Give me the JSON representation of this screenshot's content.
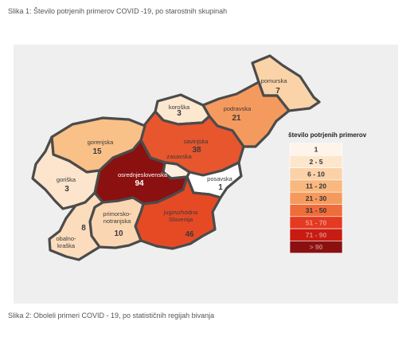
{
  "captions": {
    "top": "Slika 1: Število potrjenih primerov COVID -19, po starostnih skupinah",
    "bottom": "Slika 2: Oboleli primeri COVID - 19, po statističnih regijah bivanja"
  },
  "map": {
    "regions": [
      {
        "id": "pomurska",
        "lines": [
          "pomurska"
        ],
        "value": "7",
        "fill": "#fbd3a8"
      },
      {
        "id": "podravska",
        "lines": [
          "podravska"
        ],
        "value": "21",
        "fill": "#f59a5e"
      },
      {
        "id": "koroska",
        "lines": [
          "koroška"
        ],
        "value": "3",
        "fill": "#fce7cf"
      },
      {
        "id": "savinjska",
        "lines": [
          "savinjska"
        ],
        "value": "38",
        "fill": "#e8562e"
      },
      {
        "id": "zasavska",
        "lines": [
          "zasavska"
        ],
        "value": "",
        "fill": "#fdeedd"
      },
      {
        "id": "gorenjska",
        "lines": [
          "gorenjska"
        ],
        "value": "15",
        "fill": "#f9c088"
      },
      {
        "id": "osrednjeslovenska",
        "lines": [
          "osrednjeslovenska"
        ],
        "value": "94",
        "fill": "#8b1010"
      },
      {
        "id": "posavska",
        "lines": [
          "posavska"
        ],
        "value": "1",
        "fill": "#ffffff"
      },
      {
        "id": "goriska",
        "lines": [
          "goriška"
        ],
        "value": "3",
        "fill": "#fce5cc"
      },
      {
        "id": "jugovzhodna",
        "lines": [
          "jugovzhodna",
          "Slovenija"
        ],
        "value": "46",
        "fill": "#e64a25"
      },
      {
        "id": "primorsko",
        "lines": [
          "primorsko-",
          "notranjska"
        ],
        "value": "10",
        "fill": "#fad7b2"
      },
      {
        "id": "obalno",
        "lines": [
          "obalno-",
          "kraška"
        ],
        "value": "8",
        "fill": "#fbdcbc"
      }
    ]
  },
  "legend": {
    "title": "število potrjenih primerov",
    "items": [
      {
        "label": "1",
        "color": "#fef4ea"
      },
      {
        "label": "2 - 5",
        "color": "#fde6cc"
      },
      {
        "label": "6 - 10",
        "color": "#fbd2a8"
      },
      {
        "label": "11 - 20",
        "color": "#f8b87f"
      },
      {
        "label": "21 - 30",
        "color": "#f59a5e"
      },
      {
        "label": "31 - 50",
        "color": "#ef6c3b"
      },
      {
        "label": "51 - 70",
        "color": "#e43a22"
      },
      {
        "label": "71 - 90",
        "color": "#c81c12"
      },
      {
        "label": "> 90",
        "color": "#8b1010"
      }
    ]
  }
}
